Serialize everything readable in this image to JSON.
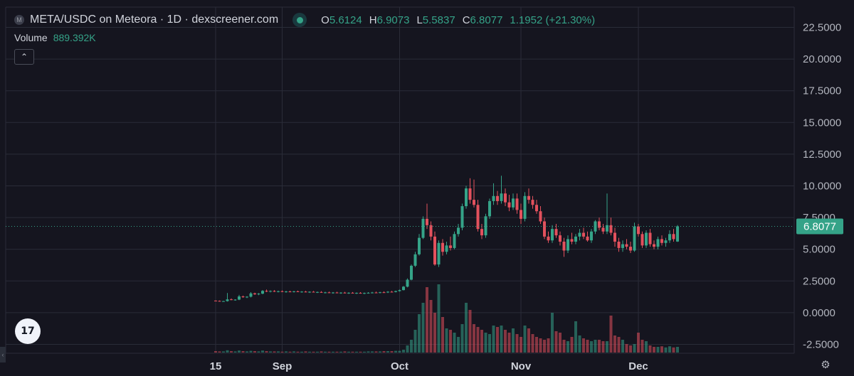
{
  "header": {
    "logo_letter": "M",
    "symbol": "META/USDC on Meteora · 1D · dexscreener.com",
    "ohlc": {
      "o_label": "O",
      "o": "5.6124",
      "h_label": "H",
      "h": "6.9073",
      "l_label": "L",
      "l": "5.5837",
      "c_label": "C",
      "c": "6.8077",
      "change": "1.1952 (+21.30%)"
    }
  },
  "volume": {
    "label": "Volume",
    "value": "889.392K"
  },
  "controls": {
    "collapse_icon": "chevron-up-icon",
    "collapse_glyph": "⌃",
    "tv_logo": "17",
    "settings_glyph": "⚙",
    "handle_glyph": "‹"
  },
  "colors": {
    "up": "#35a388",
    "down": "#e3515d",
    "grid": "#2a2c38",
    "background": "#15151f",
    "price_label_bg": "#35a388"
  },
  "chart_data": {
    "type": "candlestick",
    "title": "META/USDC on Meteora · 1D · dexscreener.com",
    "ylim": [
      -3.3,
      23.5
    ],
    "y_ticks": [
      "22.5000",
      "20.0000",
      "17.5000",
      "15.0000",
      "12.5000",
      "10.0000",
      "7.5000",
      "5.0000",
      "2.5000",
      "0.0000",
      "-2.5000"
    ],
    "x_ticks": [
      {
        "label": "15",
        "date": "2024-08-15"
      },
      {
        "label": "Sep",
        "date": "2024-09-01"
      },
      {
        "label": "Oct",
        "date": "2024-10-01"
      },
      {
        "label": "Nov",
        "date": "2024-11-01"
      },
      {
        "label": "Dec",
        "date": "2024-12-01"
      }
    ],
    "first_date": "2024-08-15",
    "last_price": "6.8077",
    "grid": true,
    "candles": [
      [
        0.95,
        0.97,
        0.9,
        0.93
      ],
      [
        0.93,
        0.96,
        0.88,
        0.9
      ],
      [
        0.9,
        0.94,
        0.86,
        0.91
      ],
      [
        0.91,
        1.55,
        0.88,
        1.05
      ],
      [
        1.05,
        1.12,
        0.98,
        1.0
      ],
      [
        1.0,
        1.06,
        0.95,
        1.03
      ],
      [
        1.03,
        1.4,
        0.99,
        1.28
      ],
      [
        1.28,
        1.35,
        1.18,
        1.22
      ],
      [
        1.22,
        1.3,
        1.15,
        1.26
      ],
      [
        1.26,
        1.62,
        1.2,
        1.52
      ],
      [
        1.52,
        1.58,
        1.4,
        1.45
      ],
      [
        1.45,
        1.55,
        1.38,
        1.5
      ],
      [
        1.5,
        1.78,
        1.45,
        1.72
      ],
      [
        1.72,
        1.82,
        1.62,
        1.68
      ],
      [
        1.68,
        1.76,
        1.6,
        1.71
      ],
      [
        1.71,
        1.78,
        1.63,
        1.66
      ],
      [
        1.66,
        1.74,
        1.6,
        1.69
      ],
      [
        1.69,
        1.75,
        1.62,
        1.64
      ],
      [
        1.64,
        1.72,
        1.58,
        1.67
      ],
      [
        1.67,
        1.73,
        1.61,
        1.65
      ],
      [
        1.65,
        1.72,
        1.59,
        1.68
      ],
      [
        1.68,
        1.74,
        1.62,
        1.64
      ],
      [
        1.64,
        1.7,
        1.58,
        1.66
      ],
      [
        1.66,
        1.72,
        1.6,
        1.62
      ],
      [
        1.62,
        1.68,
        1.56,
        1.65
      ],
      [
        1.65,
        1.71,
        1.59,
        1.61
      ],
      [
        1.61,
        1.67,
        1.55,
        1.63
      ],
      [
        1.63,
        1.7,
        1.57,
        1.58
      ],
      [
        1.58,
        1.65,
        1.52,
        1.6
      ],
      [
        1.6,
        1.66,
        1.54,
        1.56
      ],
      [
        1.56,
        1.63,
        1.5,
        1.59
      ],
      [
        1.59,
        1.65,
        1.53,
        1.55
      ],
      [
        1.55,
        1.62,
        1.49,
        1.58
      ],
      [
        1.58,
        1.64,
        1.52,
        1.54
      ],
      [
        1.54,
        1.61,
        1.48,
        1.57
      ],
      [
        1.57,
        1.63,
        1.51,
        1.53
      ],
      [
        1.53,
        1.6,
        1.47,
        1.56
      ],
      [
        1.56,
        1.62,
        1.5,
        1.52
      ],
      [
        1.52,
        1.59,
        1.46,
        1.55
      ],
      [
        1.55,
        1.62,
        1.5,
        1.57
      ],
      [
        1.57,
        1.64,
        1.52,
        1.59
      ],
      [
        1.59,
        1.66,
        1.54,
        1.58
      ],
      [
        1.58,
        1.65,
        1.53,
        1.61
      ],
      [
        1.61,
        1.68,
        1.56,
        1.6
      ],
      [
        1.6,
        1.7,
        1.55,
        1.65
      ],
      [
        1.65,
        1.72,
        1.6,
        1.63
      ],
      [
        1.63,
        1.74,
        1.6,
        1.7
      ],
      [
        1.7,
        1.82,
        1.66,
        1.78
      ],
      [
        1.78,
        2.1,
        1.75,
        2.05
      ],
      [
        2.05,
        2.7,
        2.0,
        2.6
      ],
      [
        2.6,
        3.8,
        2.55,
        3.7
      ],
      [
        3.7,
        4.8,
        3.6,
        4.6
      ],
      [
        4.6,
        6.2,
        4.5,
        5.9
      ],
      [
        5.9,
        7.6,
        5.8,
        7.4
      ],
      [
        7.4,
        8.6,
        6.6,
        6.9
      ],
      [
        6.9,
        7.2,
        5.7,
        6.0
      ],
      [
        6.0,
        6.4,
        3.7,
        3.8
      ],
      [
        3.8,
        5.7,
        3.6,
        5.5
      ],
      [
        5.5,
        5.8,
        4.5,
        4.8
      ],
      [
        4.8,
        5.6,
        4.6,
        5.3
      ],
      [
        5.3,
        6.0,
        4.9,
        5.1
      ],
      [
        5.1,
        6.4,
        5.0,
        6.2
      ],
      [
        6.2,
        7.0,
        6.0,
        6.7
      ],
      [
        6.7,
        8.6,
        6.5,
        8.4
      ],
      [
        8.4,
        10.0,
        8.2,
        9.8
      ],
      [
        9.8,
        10.6,
        8.6,
        8.9
      ],
      [
        8.9,
        10.5,
        8.3,
        8.5
      ],
      [
        8.5,
        8.9,
        6.4,
        6.6
      ],
      [
        6.6,
        7.0,
        5.8,
        6.1
      ],
      [
        6.1,
        7.8,
        5.9,
        7.6
      ],
      [
        7.6,
        9.0,
        7.4,
        8.8
      ],
      [
        8.8,
        10.2,
        8.5,
        9.2
      ],
      [
        9.2,
        9.6,
        8.5,
        8.8
      ],
      [
        8.8,
        10.8,
        8.6,
        9.4
      ],
      [
        9.4,
        9.8,
        8.4,
        8.7
      ],
      [
        8.7,
        9.3,
        8.0,
        8.3
      ],
      [
        8.3,
        9.4,
        8.1,
        9.0
      ],
      [
        9.0,
        9.4,
        7.8,
        8.1
      ],
      [
        8.1,
        8.6,
        7.0,
        7.4
      ],
      [
        7.4,
        9.5,
        7.2,
        9.2
      ],
      [
        9.2,
        9.8,
        8.6,
        8.9
      ],
      [
        8.9,
        9.2,
        8.2,
        8.5
      ],
      [
        8.5,
        8.9,
        7.8,
        8.0
      ],
      [
        8.0,
        8.4,
        7.0,
        7.2
      ],
      [
        7.2,
        7.5,
        5.8,
        6.0
      ],
      [
        6.0,
        6.4,
        5.5,
        5.7
      ],
      [
        5.7,
        6.9,
        5.5,
        6.6
      ],
      [
        6.6,
        7.0,
        5.9,
        6.1
      ],
      [
        6.1,
        6.4,
        5.3,
        5.6
      ],
      [
        5.6,
        5.9,
        4.4,
        4.9
      ],
      [
        4.9,
        6.1,
        4.7,
        5.8
      ],
      [
        5.8,
        6.3,
        5.4,
        5.6
      ],
      [
        5.6,
        6.2,
        5.4,
        6.0
      ],
      [
        6.0,
        6.6,
        5.7,
        6.3
      ],
      [
        6.3,
        6.7,
        5.8,
        6.0
      ],
      [
        6.0,
        6.4,
        5.6,
        5.7
      ],
      [
        5.7,
        6.6,
        5.5,
        6.4
      ],
      [
        6.4,
        7.3,
        6.2,
        7.2
      ],
      [
        7.2,
        7.5,
        6.5,
        6.7
      ],
      [
        6.7,
        7.0,
        6.2,
        6.4
      ],
      [
        6.4,
        9.4,
        6.2,
        6.9
      ],
      [
        6.9,
        7.5,
        6.1,
        6.3
      ],
      [
        6.3,
        6.7,
        5.2,
        5.6
      ],
      [
        5.6,
        5.9,
        4.8,
        5.1
      ],
      [
        5.1,
        5.7,
        4.8,
        5.4
      ],
      [
        5.4,
        5.8,
        5.0,
        5.2
      ],
      [
        5.2,
        5.6,
        4.7,
        4.9
      ],
      [
        4.9,
        7.1,
        4.8,
        6.8
      ],
      [
        6.8,
        7.0,
        6.0,
        6.2
      ],
      [
        6.2,
        6.4,
        5.1,
        5.3
      ],
      [
        5.3,
        6.5,
        5.1,
        6.3
      ],
      [
        6.3,
        6.6,
        5.2,
        5.4
      ],
      [
        5.4,
        5.7,
        5.0,
        5.2
      ],
      [
        5.2,
        6.0,
        5.0,
        5.8
      ],
      [
        5.8,
        6.1,
        5.3,
        5.5
      ],
      [
        5.5,
        5.9,
        5.2,
        5.7
      ],
      [
        5.7,
        6.5,
        5.5,
        6.2
      ],
      [
        6.2,
        6.6,
        5.6,
        5.8
      ],
      [
        5.61,
        6.91,
        5.58,
        6.81
      ]
    ],
    "volume": [
      0.05,
      0.04,
      0.04,
      0.08,
      0.05,
      0.04,
      0.07,
      0.05,
      0.04,
      0.06,
      0.05,
      0.04,
      0.07,
      0.05,
      0.04,
      0.04,
      0.04,
      0.03,
      0.04,
      0.03,
      0.04,
      0.03,
      0.03,
      0.04,
      0.03,
      0.03,
      0.03,
      0.04,
      0.03,
      0.03,
      0.03,
      0.03,
      0.03,
      0.04,
      0.03,
      0.03,
      0.03,
      0.03,
      0.03,
      0.04,
      0.04,
      0.04,
      0.04,
      0.05,
      0.05,
      0.05,
      0.06,
      0.06,
      0.1,
      0.25,
      0.45,
      0.8,
      1.35,
      1.75,
      2.3,
      1.85,
      1.4,
      2.4,
      1.25,
      0.85,
      0.8,
      0.7,
      0.55,
      1.0,
      1.75,
      1.5,
      1.0,
      0.9,
      0.8,
      0.7,
      0.65,
      0.95,
      0.9,
      0.95,
      0.8,
      0.7,
      0.85,
      0.65,
      0.55,
      0.95,
      0.85,
      0.65,
      0.55,
      0.5,
      0.45,
      0.5,
      1.4,
      0.75,
      0.7,
      0.45,
      0.4,
      0.55,
      1.1,
      0.6,
      0.5,
      0.45,
      0.4,
      0.45,
      0.45,
      0.4,
      0.4,
      1.3,
      0.6,
      0.55,
      0.45,
      0.3,
      0.25,
      0.3,
      0.7,
      0.45,
      0.4,
      0.25,
      0.2,
      0.2,
      0.22,
      0.18,
      0.22,
      0.18,
      0.2
    ]
  }
}
